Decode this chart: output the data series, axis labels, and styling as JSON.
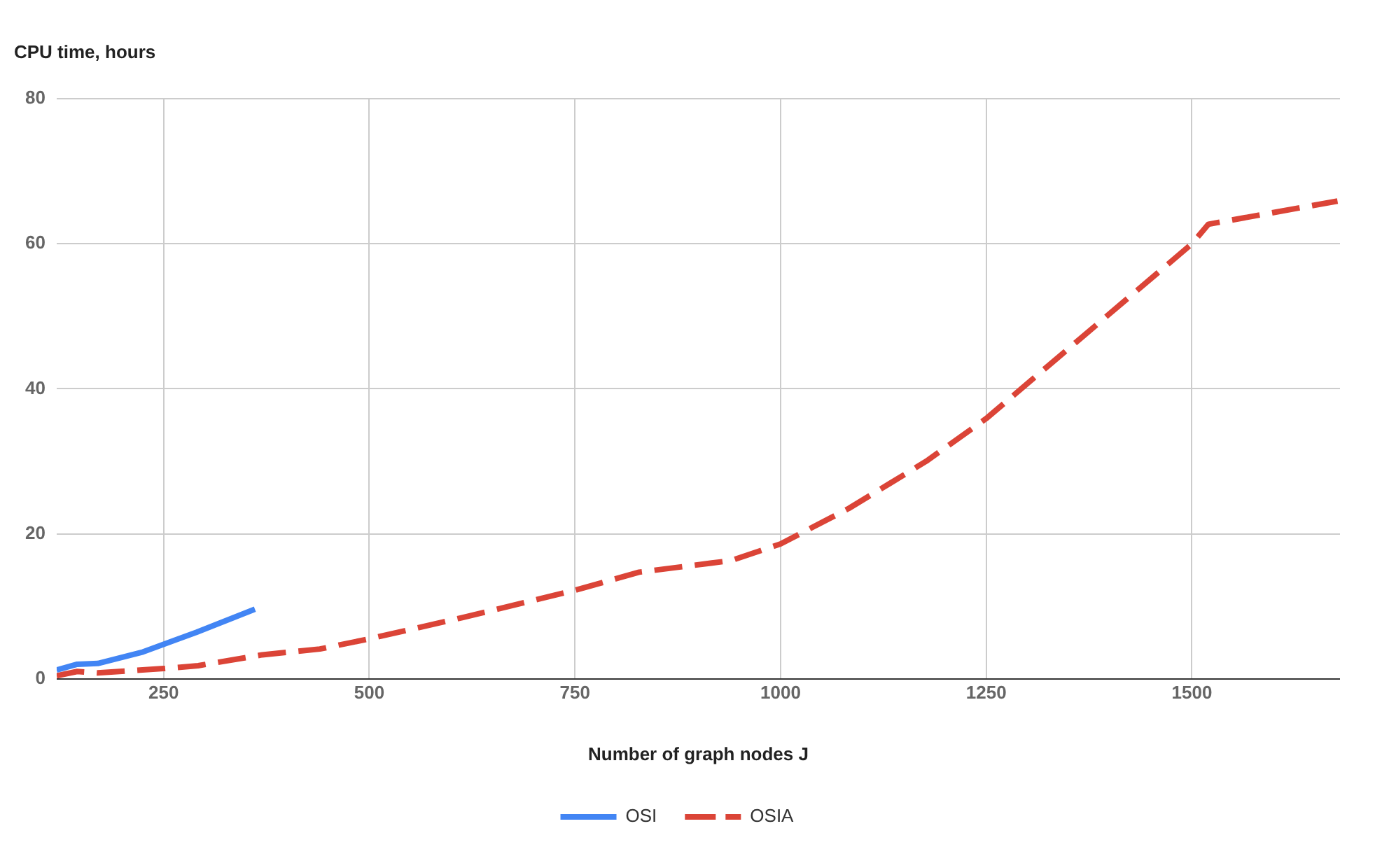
{
  "chart_data": {
    "type": "line",
    "xlabel": "Number of graph nodes J",
    "ylabel": "CPU time, hours",
    "xlim": [
      120,
      1680
    ],
    "xticks": [
      250,
      500,
      750,
      1000,
      1250,
      1500
    ],
    "ylim": [
      0,
      80
    ],
    "yticks": [
      0,
      20,
      40,
      60,
      80
    ],
    "grid": true,
    "legend": "bottom",
    "marker": "none",
    "series": [
      {
        "name": "OSI",
        "color": "#4285f4",
        "line_style": "solid",
        "x": [
          120,
          145,
          170,
          225,
          290,
          361
        ],
        "values": [
          1.2,
          2.0,
          2.1,
          3.7,
          6.4,
          9.6
        ]
      },
      {
        "name": "OSIA",
        "color": "#db4437",
        "line_style": "dashed",
        "x": [
          120,
          145,
          170,
          250,
          292,
          370,
          440,
          500,
          612,
          750,
          828,
          940,
          1000,
          1083,
          1177,
          1250,
          1500,
          1520,
          1677
        ],
        "values": [
          0.4,
          1.0,
          0.8,
          1.4,
          1.8,
          3.3,
          4.1,
          5.5,
          8.4,
          12.2,
          14.7,
          16.3,
          18.6,
          23.5,
          30,
          35.9,
          60,
          62.7,
          65.9
        ]
      }
    ]
  }
}
